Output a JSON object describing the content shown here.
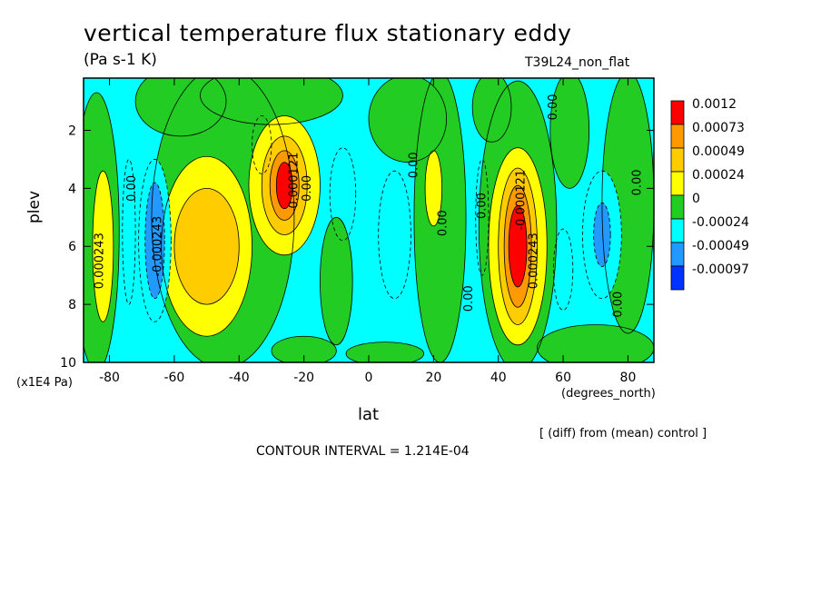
{
  "title": "vertical temperature flux stationary eddy",
  "units": "(Pa s-1 K)",
  "run_label": "T39L24_non_flat",
  "note": "[ (diff) from (mean) control ]",
  "contour_interval": "CONTOUR INTERVAL = 1.214E-04",
  "chart_data": {
    "type": "heatmap",
    "xlabel": "lat",
    "x_units": "(degrees_north)",
    "ylabel": "plev",
    "y_units": "(x1E4 Pa)",
    "xlim": [
      -88,
      88
    ],
    "ylim": [
      10,
      0.2
    ],
    "x_ticks": [
      "-80",
      "-60",
      "-40",
      "-20",
      "0",
      "20",
      "40",
      "60",
      "80"
    ],
    "x_tick_values": [
      -80,
      -60,
      -40,
      -20,
      0,
      20,
      40,
      60,
      80
    ],
    "y_ticks": [
      "2",
      "4",
      "6",
      "8",
      "10"
    ],
    "y_tick_values": [
      2,
      4,
      6,
      8,
      10
    ],
    "legend": {
      "placement": "right",
      "labels": [
        "0.0012",
        "0.00073",
        "0.00049",
        "0.00024",
        "0",
        "-0.00024",
        "-0.00049",
        "-0.00097"
      ],
      "colors": [
        "#ff0000",
        "#ff9900",
        "#ffcc00",
        "#ffff00",
        "#22cc22",
        "#00ffff",
        "#2299ff",
        "#0033ff"
      ]
    },
    "background_color": "#00ffff",
    "features": [
      {
        "name": "pos-max-45N",
        "lat": 46,
        "plev": 6.0,
        "level": 5
      },
      {
        "name": "pos-max-25S",
        "lat": -26,
        "plev": 3.9,
        "level": 5
      },
      {
        "name": "pos-55S",
        "lat": -50,
        "plev": 6.0,
        "level": 3
      },
      {
        "name": "pos-83S",
        "lat": -82,
        "plev": 6.0,
        "level": 3
      },
      {
        "name": "pos-20N",
        "lat": 20,
        "plev": 4.0,
        "level": 3
      },
      {
        "name": "neg-65S",
        "lat": -66,
        "plev": 5.8,
        "level": -2
      },
      {
        "name": "neg-72N",
        "lat": 72,
        "plev": 5.6,
        "level": -2
      }
    ],
    "contour_labels": [
      {
        "text": "0.00",
        "lat": -72,
        "plev": 4.0
      },
      {
        "text": "0.000243",
        "lat": -82,
        "plev": 6.5
      },
      {
        "text": "-0.000243",
        "lat": -64,
        "plev": 6.0
      },
      {
        "text": "0.00",
        "lat": -18,
        "plev": 4.0
      },
      {
        "text": "-0.000121",
        "lat": -22,
        "plev": 3.8
      },
      {
        "text": "0.00",
        "lat": 15,
        "plev": 3.2
      },
      {
        "text": "0.00",
        "lat": 24,
        "plev": 5.2
      },
      {
        "text": "0.00",
        "lat": 32,
        "plev": 7.8
      },
      {
        "text": "0.00",
        "lat": 36,
        "plev": 4.6
      },
      {
        "text": "-0.000121",
        "lat": 48,
        "plev": 4.4
      },
      {
        "text": "0.000243",
        "lat": 52,
        "plev": 6.5
      },
      {
        "text": "0.00",
        "lat": 58,
        "plev": 1.2
      },
      {
        "text": "0.00",
        "lat": 78,
        "plev": 8.0
      },
      {
        "text": "0.00",
        "lat": 84,
        "plev": 3.8
      }
    ]
  }
}
